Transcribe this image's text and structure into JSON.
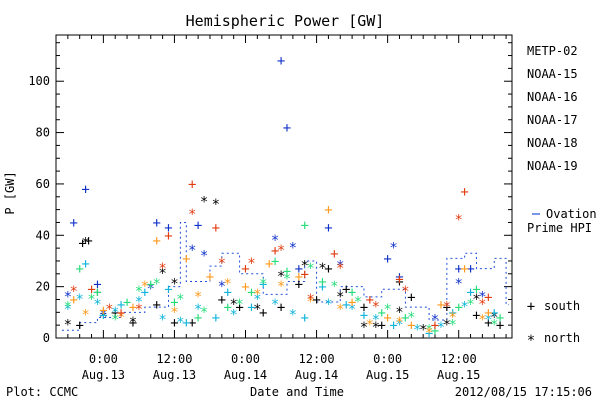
{
  "chart_data": {
    "type": "scatter",
    "title": "Hemispheric Power [GW]",
    "xlabel": "Date and Time",
    "ylabel": "P [GW]",
    "x_range_hours": [
      -8,
      69
    ],
    "ylim": [
      0,
      118
    ],
    "y_major_ticks": [
      0,
      20,
      40,
      60,
      80,
      100
    ],
    "x_ticks": [
      {
        "hour": 0,
        "time": "0:00",
        "date": "Aug.13"
      },
      {
        "hour": 12,
        "time": "12:00",
        "date": "Aug.13"
      },
      {
        "hour": 24,
        "time": "0:00",
        "date": "Aug.14"
      },
      {
        "hour": 36,
        "time": "12:00",
        "date": "Aug.14"
      },
      {
        "hour": 48,
        "time": "0:00",
        "date": "Aug.15"
      },
      {
        "hour": 60,
        "time": "12:00",
        "date": "Aug.15"
      }
    ],
    "series": [
      {
        "name": "METP-02",
        "color": "#000000",
        "south": [
          [
            -3.5,
            37
          ],
          [
            -2.5,
            38
          ],
          [
            -4,
            5
          ],
          [
            -1,
            18
          ],
          [
            2,
            10
          ],
          [
            5,
            6
          ],
          [
            9,
            13
          ],
          [
            12,
            6
          ],
          [
            15,
            6
          ],
          [
            20,
            15
          ],
          [
            23,
            12
          ],
          [
            27,
            10
          ],
          [
            30,
            12
          ],
          [
            33,
            21
          ],
          [
            36,
            15
          ],
          [
            38,
            27
          ],
          [
            41,
            19
          ],
          [
            44,
            12
          ],
          [
            47,
            5
          ],
          [
            50,
            22
          ],
          [
            52,
            16
          ],
          [
            58,
            12
          ],
          [
            63,
            9
          ],
          [
            65,
            6
          ],
          [
            67,
            5
          ]
        ],
        "north": [
          [
            -6,
            6
          ],
          [
            -3,
            38
          ],
          [
            0,
            9
          ],
          [
            5,
            7
          ],
          [
            10,
            26
          ],
          [
            12,
            22
          ],
          [
            17,
            54
          ],
          [
            19,
            53
          ],
          [
            22,
            14
          ],
          [
            26,
            12
          ],
          [
            30,
            25
          ],
          [
            34,
            29
          ],
          [
            37,
            28
          ],
          [
            40,
            17
          ],
          [
            44,
            5
          ],
          [
            46,
            5
          ],
          [
            50,
            11
          ],
          [
            54,
            4
          ],
          [
            58,
            6
          ],
          [
            63,
            16
          ],
          [
            66,
            9
          ]
        ]
      },
      {
        "name": "NOAA-15",
        "color": "#1032c8",
        "south": [
          [
            -5,
            45
          ],
          [
            -3,
            58
          ],
          [
            -1,
            21
          ],
          [
            9,
            45
          ],
          [
            11,
            43
          ],
          [
            16,
            44
          ],
          [
            30,
            108
          ],
          [
            31,
            82
          ],
          [
            33,
            27
          ],
          [
            38,
            43
          ],
          [
            48,
            31
          ],
          [
            50,
            24
          ],
          [
            60,
            27
          ],
          [
            62,
            27
          ]
        ],
        "north": [
          [
            -6,
            17
          ],
          [
            0,
            10
          ],
          [
            8,
            20
          ],
          [
            15,
            35
          ],
          [
            17,
            33
          ],
          [
            20,
            21
          ],
          [
            29,
            39
          ],
          [
            32,
            36
          ],
          [
            40,
            29
          ],
          [
            49,
            36
          ],
          [
            56,
            8
          ],
          [
            60,
            22
          ],
          [
            64,
            17
          ]
        ]
      },
      {
        "name": "NOAA-16",
        "color": "#10b4dc",
        "south": [
          [
            -3,
            29
          ],
          [
            0,
            9
          ],
          [
            3,
            13
          ],
          [
            7,
            18
          ],
          [
            11,
            19
          ],
          [
            14,
            6
          ],
          [
            19,
            8
          ],
          [
            21,
            18
          ],
          [
            25,
            12
          ],
          [
            27,
            21
          ],
          [
            34,
            8
          ],
          [
            37,
            20
          ],
          [
            41,
            13
          ],
          [
            44,
            9
          ],
          [
            49,
            5
          ],
          [
            55,
            2
          ],
          [
            59,
            10
          ],
          [
            62,
            18
          ],
          [
            66,
            10
          ]
        ],
        "north": [
          [
            -6,
            12
          ],
          [
            -4,
            16
          ],
          [
            -1,
            14
          ],
          [
            2,
            11
          ],
          [
            6,
            15
          ],
          [
            10,
            8
          ],
          [
            13,
            7
          ],
          [
            16,
            12
          ],
          [
            22,
            10
          ],
          [
            26,
            16
          ],
          [
            29,
            14
          ],
          [
            32,
            10
          ],
          [
            38,
            14
          ],
          [
            42,
            12
          ],
          [
            46,
            8
          ],
          [
            50,
            6
          ],
          [
            53,
            4
          ],
          [
            57,
            5
          ],
          [
            61,
            13
          ],
          [
            65,
            8
          ]
        ]
      },
      {
        "name": "NOAA-17",
        "color": "#28dc7a",
        "south": [
          [
            -4,
            27
          ],
          [
            -1,
            18
          ],
          [
            4,
            14
          ],
          [
            8,
            21
          ],
          [
            12,
            14
          ],
          [
            16,
            8
          ],
          [
            21,
            12
          ],
          [
            25,
            18
          ],
          [
            29,
            30
          ],
          [
            31,
            26
          ],
          [
            34,
            44
          ],
          [
            37,
            22
          ],
          [
            42,
            18
          ],
          [
            47,
            10
          ],
          [
            51,
            8
          ],
          [
            56,
            3
          ],
          [
            60,
            12
          ],
          [
            63,
            19
          ],
          [
            67,
            8
          ]
        ],
        "north": [
          [
            -6,
            13
          ],
          [
            -2,
            16
          ],
          [
            2,
            8
          ],
          [
            6,
            19
          ],
          [
            9,
            22
          ],
          [
            13,
            16
          ],
          [
            17,
            11
          ],
          [
            23,
            14
          ],
          [
            27,
            22
          ],
          [
            31,
            24
          ],
          [
            35,
            28
          ],
          [
            39,
            21
          ],
          [
            43,
            15
          ],
          [
            48,
            12
          ],
          [
            52,
            9
          ],
          [
            55,
            4
          ],
          [
            59,
            6
          ],
          [
            62,
            14
          ],
          [
            66,
            6
          ]
        ]
      },
      {
        "name": "NOAA-18",
        "color": "#ff9a1e",
        "south": [
          [
            -5,
            15
          ],
          [
            0,
            11
          ],
          [
            5,
            12
          ],
          [
            9,
            38
          ],
          [
            14,
            31
          ],
          [
            18,
            24
          ],
          [
            24,
            20
          ],
          [
            28,
            29
          ],
          [
            33,
            24
          ],
          [
            38,
            50
          ],
          [
            42,
            14
          ],
          [
            48,
            8
          ],
          [
            52,
            5
          ],
          [
            57,
            13
          ],
          [
            61,
            27
          ],
          [
            65,
            10
          ]
        ],
        "north": [
          [
            -3,
            10
          ],
          [
            3,
            9
          ],
          [
            7,
            21
          ],
          [
            12,
            11
          ],
          [
            16,
            17
          ],
          [
            21,
            22
          ],
          [
            26,
            18
          ],
          [
            30,
            21
          ],
          [
            35,
            15
          ],
          [
            40,
            12
          ],
          [
            45,
            6
          ],
          [
            50,
            7
          ],
          [
            55,
            3
          ],
          [
            59,
            9
          ],
          [
            64,
            8
          ]
        ]
      },
      {
        "name": "NOAA-19",
        "color": "#e13c10",
        "south": [
          [
            -2,
            19
          ],
          [
            3,
            10
          ],
          [
            11,
            40
          ],
          [
            15,
            60
          ],
          [
            19,
            43
          ],
          [
            24,
            27
          ],
          [
            29,
            34
          ],
          [
            34,
            25
          ],
          [
            39,
            33
          ],
          [
            45,
            15
          ],
          [
            50,
            23
          ],
          [
            56,
            5
          ],
          [
            61,
            57
          ],
          [
            65,
            16
          ]
        ],
        "north": [
          [
            -5,
            19
          ],
          [
            1,
            12
          ],
          [
            6,
            12
          ],
          [
            10,
            28
          ],
          [
            15,
            49
          ],
          [
            20,
            30
          ],
          [
            25,
            30
          ],
          [
            30,
            35
          ],
          [
            35,
            16
          ],
          [
            40,
            28
          ],
          [
            46,
            13
          ],
          [
            51,
            19
          ],
          [
            58,
            13
          ],
          [
            60,
            47
          ],
          [
            64,
            14
          ]
        ]
      }
    ],
    "ovation": {
      "name": "Ovation Prime HPI",
      "steps": [
        [
          -7,
          3
        ],
        [
          -4,
          6
        ],
        [
          -1,
          8
        ],
        [
          3,
          10
        ],
        [
          7,
          12
        ],
        [
          11,
          20
        ],
        [
          13,
          45
        ],
        [
          14,
          22
        ],
        [
          18,
          28
        ],
        [
          20,
          33
        ],
        [
          23,
          25
        ],
        [
          27,
          17
        ],
        [
          31,
          22
        ],
        [
          34,
          30
        ],
        [
          36,
          14
        ],
        [
          40,
          20
        ],
        [
          44,
          16
        ],
        [
          47,
          19
        ],
        [
          51,
          12
        ],
        [
          55,
          7
        ],
        [
          58,
          31
        ],
        [
          61,
          33
        ],
        [
          63,
          27
        ],
        [
          66,
          31
        ],
        [
          68,
          13
        ]
      ]
    },
    "legend_placement": "right",
    "markers": {
      "south": "+",
      "north": "*"
    },
    "south_label": "south",
    "north_label": "north"
  },
  "footer": {
    "plot_credit": "Plot: CCMC",
    "timestamp": "2012/08/15 17:15:06"
  }
}
